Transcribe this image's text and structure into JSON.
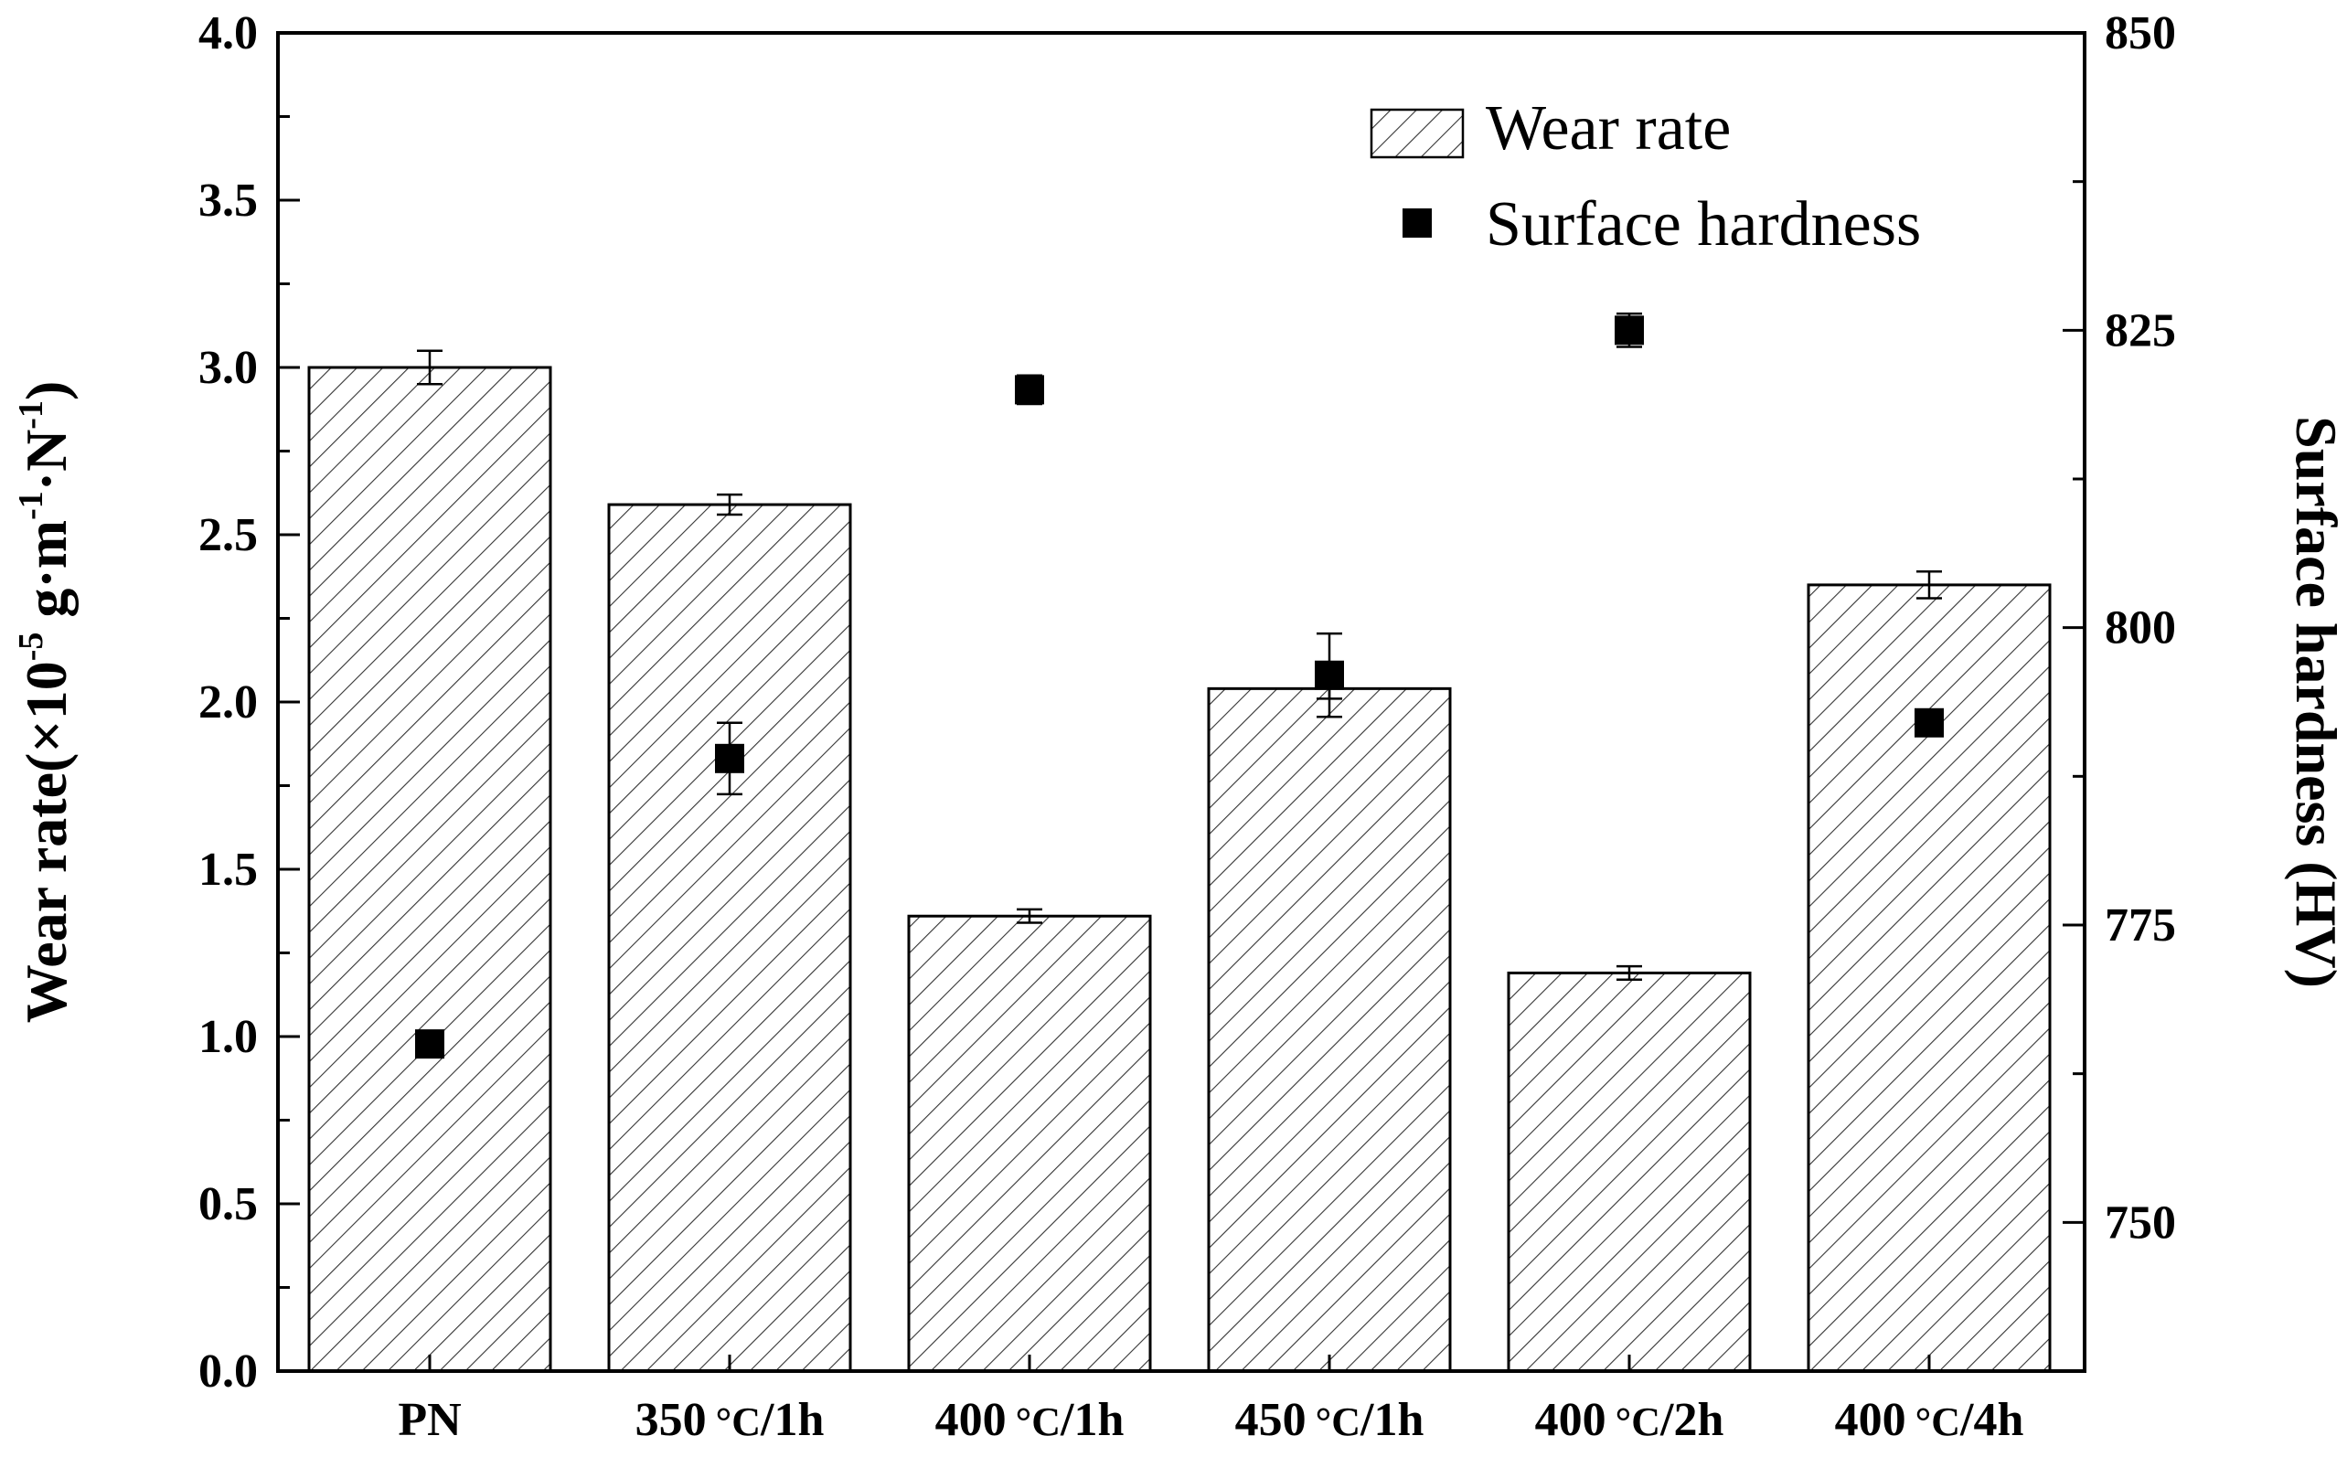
{
  "chart_data": {
    "type": "bar",
    "categories": [
      "PN",
      "350℃/1h",
      "400℃/1h",
      "450℃/1h",
      "400℃/2h",
      "400℃/4h"
    ],
    "category_display": [
      {
        "prefix": "",
        "temp": "",
        "unit": "",
        "suffix": "PN"
      },
      {
        "prefix": "",
        "temp": "350",
        "unit": "°C",
        "suffix": "/1h"
      },
      {
        "prefix": "",
        "temp": "400",
        "unit": "°C",
        "suffix": "/1h"
      },
      {
        "prefix": "",
        "temp": "450",
        "unit": "°C",
        "suffix": "/1h"
      },
      {
        "prefix": "",
        "temp": "400",
        "unit": "°C",
        "suffix": "/2h"
      },
      {
        "prefix": "",
        "temp": "400",
        "unit": "°C",
        "suffix": "/4h"
      }
    ],
    "series": [
      {
        "name": "Wear rate",
        "axis": "left",
        "mark": "hatched-bar",
        "values": [
          3.0,
          2.59,
          1.36,
          2.04,
          1.19,
          2.35
        ],
        "errors": [
          0.05,
          0.03,
          0.02,
          0.03,
          0.02,
          0.04
        ]
      },
      {
        "name": "Surface hardness",
        "axis": "right",
        "mark": "square-marker",
        "values": [
          765,
          789,
          820,
          796,
          825,
          792
        ],
        "errors": [
          1.0,
          3.0,
          1.2,
          3.5,
          1.4,
          1.0
        ]
      }
    ],
    "y_left": {
      "label_parts": {
        "a": "Wear rate(×10",
        "b": "-5",
        "c": " g·m",
        "d": "-1",
        "e": "·N",
        "f": "-1",
        "g": ")"
      },
      "range": [
        0,
        4
      ],
      "ticks": [
        0.0,
        0.5,
        1.0,
        1.5,
        2.0,
        2.5,
        3.0,
        3.5,
        4.0
      ],
      "tick_labels": [
        "0.0",
        "0.5",
        "1.0",
        "1.5",
        "2.0",
        "2.5",
        "3.0",
        "3.5",
        "4.0"
      ]
    },
    "y_right": {
      "label": "Surface hardness (HV)",
      "range": [
        737.5,
        850
      ],
      "ticks": [
        750,
        775,
        800,
        825,
        850
      ],
      "tick_labels": [
        "750",
        "775",
        "800",
        "825",
        "850"
      ]
    },
    "legend": {
      "placement": "top-right",
      "entries": [
        "Wear rate",
        "Surface hardness"
      ]
    },
    "grid": false
  }
}
